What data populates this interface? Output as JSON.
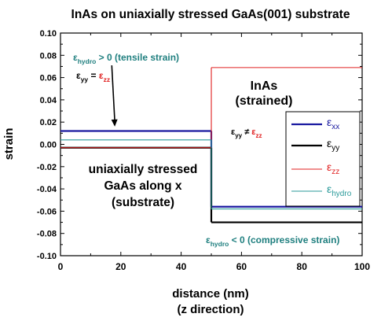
{
  "chart_data": {
    "type": "line",
    "title": "InAs on uniaxially stressed GaAs(001) substrate",
    "xlabel": "distance (nm)",
    "xlabel_sub": "(z direction)",
    "ylabel": "strain",
    "xlim": [
      0,
      100
    ],
    "ylim": [
      -0.1,
      0.1
    ],
    "x_ticks": [
      0,
      20,
      40,
      60,
      80,
      100
    ],
    "x_tick_labels": [
      "0",
      "20",
      "40",
      "60",
      "80",
      "100"
    ],
    "y_ticks": [
      -0.1,
      -0.08,
      -0.06,
      -0.04,
      -0.02,
      0.0,
      0.02,
      0.04,
      0.06,
      0.08,
      0.1
    ],
    "y_tick_labels": [
      "-0.10",
      "-0.08",
      "-0.06",
      "-0.04",
      "-0.02",
      "0.00",
      "0.02",
      "0.04",
      "0.06",
      "0.08",
      "0.10"
    ],
    "grid": false,
    "legend_position": "right",
    "series": [
      {
        "key": "exx",
        "symbol": "ε",
        "subscript": "xx",
        "color": "#1a1aa0",
        "segments": [
          {
            "x": [
              0,
              50
            ],
            "y": [
              0.012,
              0.012
            ]
          },
          {
            "x": [
              50,
              100
            ],
            "y": [
              -0.056,
              -0.056
            ]
          }
        ],
        "vertical_at_x": 50
      },
      {
        "key": "eyy",
        "symbol": "ε",
        "subscript": "yy",
        "color": "#000000",
        "segments": [
          {
            "x": [
              0,
              50
            ],
            "y": [
              -0.003,
              -0.003
            ]
          },
          {
            "x": [
              50,
              100
            ],
            "y": [
              -0.07,
              -0.07
            ]
          }
        ],
        "vertical_at_x": 50
      },
      {
        "key": "ezz",
        "symbol": "ε",
        "subscript": "zz",
        "color": "#e02020",
        "segments": [
          {
            "x": [
              0,
              50
            ],
            "y": [
              -0.003,
              -0.003
            ]
          },
          {
            "x": [
              50,
              100
            ],
            "y": [
              0.069,
              0.069
            ]
          }
        ],
        "vertical_at_x": 50
      },
      {
        "key": "ehydro",
        "symbol": "ε",
        "subscript": "hydro",
        "color": "#2a9a9a",
        "segments": [
          {
            "x": [
              0,
              50
            ],
            "y": [
              0.004,
              0.004
            ]
          },
          {
            "x": [
              50,
              100
            ],
            "y": [
              -0.058,
              -0.058
            ]
          }
        ],
        "vertical_at_x": 50
      }
    ],
    "annotations": {
      "tensile": {
        "symbol": "ε",
        "sub": "hydro",
        "rest": " > 0 (tensile strain)",
        "color": "#1f7f7f"
      },
      "eyy_eq": {
        "lhs_symbol": "ε",
        "lhs_sub": "yy",
        "op": " = ",
        "rhs_symbol": "ε",
        "rhs_sub": "zz",
        "lhs_color": "#000000",
        "rhs_color": "#e02020"
      },
      "inas_line1": "InAs",
      "inas_line2": "(strained)",
      "eyy_neq": {
        "lhs_symbol": "ε",
        "lhs_sub": "yy",
        "op": " ≠ ",
        "rhs_symbol": "ε",
        "rhs_sub": "zz",
        "lhs_color": "#000000",
        "rhs_color": "#e02020"
      },
      "gaas_line1": "uniaxially stressed",
      "gaas_line2": "GaAs along x",
      "gaas_line3": "(substrate)",
      "compressive": {
        "symbol": "ε",
        "sub": "hydro",
        "rest": " < 0 (compressive strain)",
        "color": "#1f7f7f"
      },
      "arrow": {
        "from": [
          17,
          0.071
        ],
        "to": [
          18,
          0.016
        ]
      }
    }
  }
}
